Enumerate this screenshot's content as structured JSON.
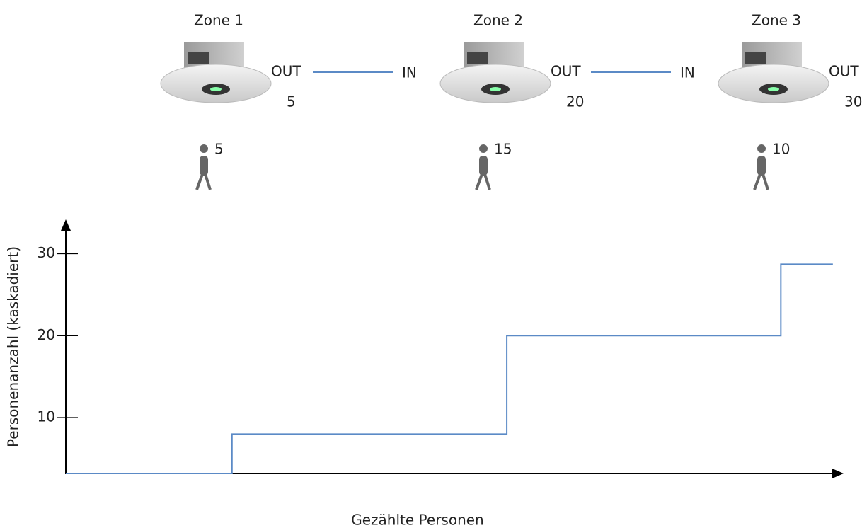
{
  "diagram": {
    "zones": [
      {
        "title": "Zone 1",
        "out": "OUT",
        "out_value": 5,
        "people": 5
      },
      {
        "title": "Zone 2",
        "in": "IN",
        "out": "OUT",
        "out_value": 20,
        "people": 15
      },
      {
        "title": "Zone 3",
        "in": "IN",
        "out": "OUT",
        "out_value": 30,
        "people": 10
      }
    ]
  },
  "chart_data": {
    "type": "step",
    "y_label": "Personenanzahl (kaskadiert)",
    "x_label": "Gezählte Personen",
    "x": [
      0,
      21.4,
      21.4,
      56.8,
      56.8,
      92.1,
      92.1,
      98.8
    ],
    "values": [
      3.2,
      3.2,
      8,
      8,
      20,
      20,
      28.7,
      28.7
    ],
    "color": "#5b8ac6",
    "xlim": [
      0,
      100
    ],
    "ylim": [
      3.2,
      34
    ],
    "yticks": [
      10,
      20,
      30
    ]
  }
}
